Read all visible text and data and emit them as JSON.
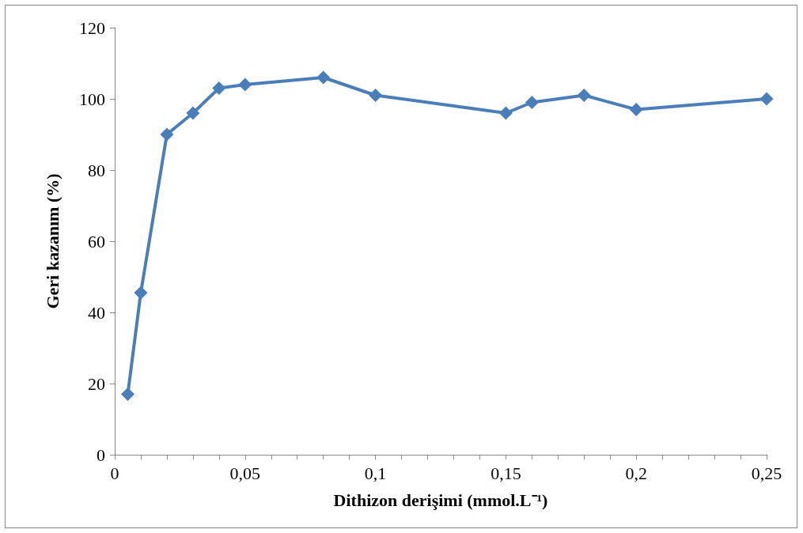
{
  "chart_data": {
    "type": "line",
    "xlabel": "Dithizon derişimi (mmol.L⁻¹)",
    "ylabel": "Geri kazanım (%)",
    "x": [
      0.005,
      0.01,
      0.02,
      0.03,
      0.04,
      0.05,
      0.08,
      0.1,
      0.15,
      0.16,
      0.18,
      0.2,
      0.25
    ],
    "series": [
      {
        "color": "#4a7ebb",
        "values": [
          17,
          45.5,
          90,
          96,
          103,
          104,
          106,
          101,
          96,
          99,
          101,
          97,
          100
        ]
      }
    ],
    "xlim": [
      0,
      0.25
    ],
    "xticks": [
      {
        "value": 0,
        "label": "0"
      },
      {
        "value": 0.01,
        "label": null
      },
      {
        "value": 0.02,
        "label": null
      },
      {
        "value": 0.03,
        "label": null
      },
      {
        "value": 0.04,
        "label": null
      },
      {
        "value": 0.05,
        "label": "0,05"
      },
      {
        "value": 0.06,
        "label": null
      },
      {
        "value": 0.07,
        "label": null
      },
      {
        "value": 0.08,
        "label": null
      },
      {
        "value": 0.09,
        "label": null
      },
      {
        "value": 0.1,
        "label": "0,1"
      },
      {
        "value": 0.11,
        "label": null
      },
      {
        "value": 0.12,
        "label": null
      },
      {
        "value": 0.13,
        "label": null
      },
      {
        "value": 0.14,
        "label": null
      },
      {
        "value": 0.15,
        "label": "0,15"
      },
      {
        "value": 0.16,
        "label": null
      },
      {
        "value": 0.17,
        "label": null
      },
      {
        "value": 0.18,
        "label": null
      },
      {
        "value": 0.19,
        "label": null
      },
      {
        "value": 0.2,
        "label": "0,2"
      },
      {
        "value": 0.21,
        "label": null
      },
      {
        "value": 0.22,
        "label": null
      },
      {
        "value": 0.23,
        "label": null
      },
      {
        "value": 0.24,
        "label": null
      },
      {
        "value": 0.25,
        "label": "0,25"
      }
    ],
    "ylim": [
      0,
      120
    ],
    "yticks": [
      0,
      20,
      40,
      60,
      80,
      100,
      120
    ],
    "grid": false,
    "marker": "diamond",
    "line_style": "solid"
  }
}
